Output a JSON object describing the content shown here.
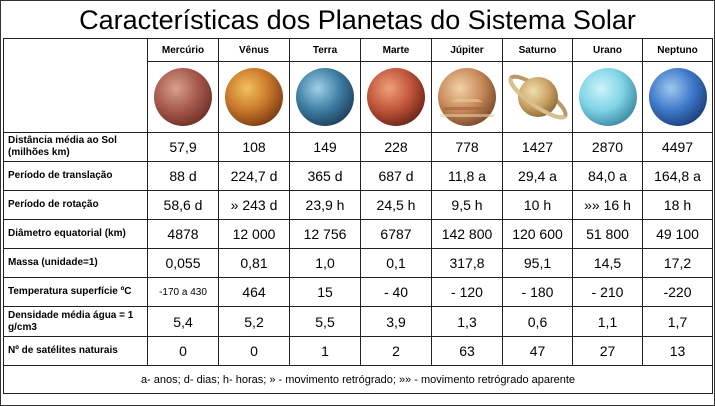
{
  "title": "Características dos Planetas do Sistema Solar",
  "planets": [
    {
      "name": "Mercúrio",
      "icon": "mercury-icon",
      "colors": [
        "#d7a08d",
        "#a7594d",
        "#6f2f28"
      ]
    },
    {
      "name": "Vênus",
      "icon": "venus-icon",
      "colors": [
        "#f2c15d",
        "#c9782a",
        "#7a3b12"
      ]
    },
    {
      "name": "Terra",
      "icon": "earth-icon",
      "colors": [
        "#9fd0e8",
        "#3d7ea3",
        "#1f3f5c"
      ]
    },
    {
      "name": "Marte",
      "icon": "mars-icon",
      "colors": [
        "#f0a07a",
        "#c0553a",
        "#6b2418"
      ]
    },
    {
      "name": "Júpiter",
      "icon": "jupiter-icon",
      "colors": [
        "#f1d1a5",
        "#c98a5b",
        "#7a4a2a"
      ]
    },
    {
      "name": "Saturno",
      "icon": "saturn-icon",
      "colors": [
        "#f0deb0",
        "#cda567",
        "#8a6a3a"
      ]
    },
    {
      "name": "Urano",
      "icon": "uranus-icon",
      "colors": [
        "#cdf4f8",
        "#7fd3e6",
        "#3b8aa3"
      ]
    },
    {
      "name": "Neptuno",
      "icon": "neptune-icon",
      "colors": [
        "#9ec8f0",
        "#3f78c9",
        "#1b3f7a"
      ]
    }
  ],
  "rows": [
    {
      "label": "Distância média ao Sol (milhões km)",
      "values": [
        "57,9",
        "108",
        "149",
        "228",
        "778",
        "1427",
        "2870",
        "4497"
      ]
    },
    {
      "label": "Período de translação",
      "values": [
        "88 d",
        "224,7 d",
        "365 d",
        "687 d",
        "11,8 a",
        "29,4 a",
        "84,0 a",
        "164,8 a"
      ]
    },
    {
      "label": "Período de rotação",
      "values": [
        "58,6 d",
        "» 243 d",
        "23,9 h",
        "24,5 h",
        "9,5 h",
        "10 h",
        "»» 16 h",
        "18 h"
      ]
    },
    {
      "label": "Diâmetro equatorial (km)",
      "values": [
        "4878",
        "12 000",
        "12 756",
        "6787",
        "142 800",
        "120 600",
        "51 800",
        "49 100"
      ]
    },
    {
      "label": "Massa (unidade=1)",
      "values": [
        "0,055",
        "0,81",
        "1,0",
        "0,1",
        "317,8",
        "95,1",
        "14,5",
        "17,2"
      ]
    },
    {
      "label": "Temperatura superfície ºC",
      "values": [
        "-170 a 430",
        "464",
        "15",
        "- 40",
        "- 120",
        "- 180",
        "- 210",
        "-220"
      ]
    },
    {
      "label": "Densidade média água = 1 g/cm3",
      "values": [
        "5,4",
        "5,2",
        "5,5",
        "3,9",
        "1,3",
        "0,6",
        "1,1",
        "1,7"
      ]
    },
    {
      "label": "Nº de satélites naturais",
      "values": [
        "0",
        "0",
        "1",
        "2",
        "63",
        "47",
        "27",
        "13"
      ]
    }
  ],
  "footer": "a- anos; d- dias; h- horas; » - movimento retrógrado; »» - movimento retrógrado aparente"
}
